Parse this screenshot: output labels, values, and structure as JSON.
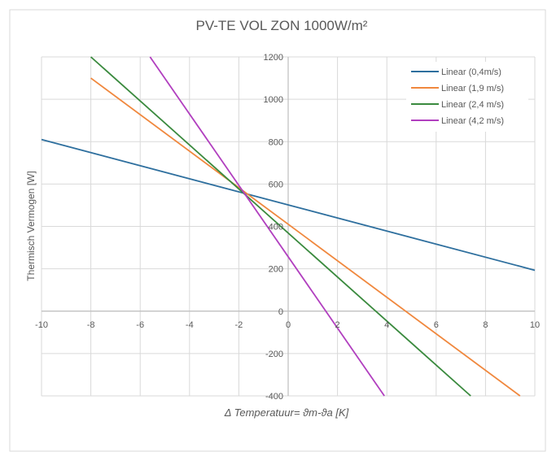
{
  "chart_data": {
    "type": "line",
    "title": "PV-TE VOL ZON 1000W/m²",
    "xlabel": "Δ Temperatuur=  ϑm-ϑa [K]",
    "ylabel": "Thermisch Vermogen [W]",
    "xlim": [
      -10,
      10
    ],
    "ylim": [
      -400,
      1200
    ],
    "xticks": [
      -10,
      -8,
      -6,
      -4,
      -2,
      0,
      2,
      4,
      6,
      8,
      10
    ],
    "yticks": [
      -400,
      -200,
      0,
      200,
      400,
      600,
      800,
      1000,
      1200
    ],
    "grid": true,
    "legend_position": "top-right",
    "series": [
      {
        "name": "Linear (0,4m/s)",
        "color": "#2e6f9e",
        "x": [
          -10,
          10
        ],
        "y": [
          810,
          193
        ]
      },
      {
        "name": "Linear (1,9 m/s)",
        "color": "#f0883e",
        "x": [
          -8,
          9.4
        ],
        "y": [
          1100,
          -400
        ]
      },
      {
        "name": "Linear (2,4 m/s)",
        "color": "#3a8a3e",
        "x": [
          -8,
          7.4
        ],
        "y": [
          1200,
          -400
        ]
      },
      {
        "name": "Linear (4,2 m/s)",
        "color": "#b13fbf",
        "x": [
          -5.6,
          3.9
        ],
        "y": [
          1200,
          -400
        ]
      }
    ]
  },
  "colors": {
    "grid": "#d9d9d9",
    "axis": "#bfbfbf",
    "text": "#595959",
    "border": "#d9d9d9"
  }
}
